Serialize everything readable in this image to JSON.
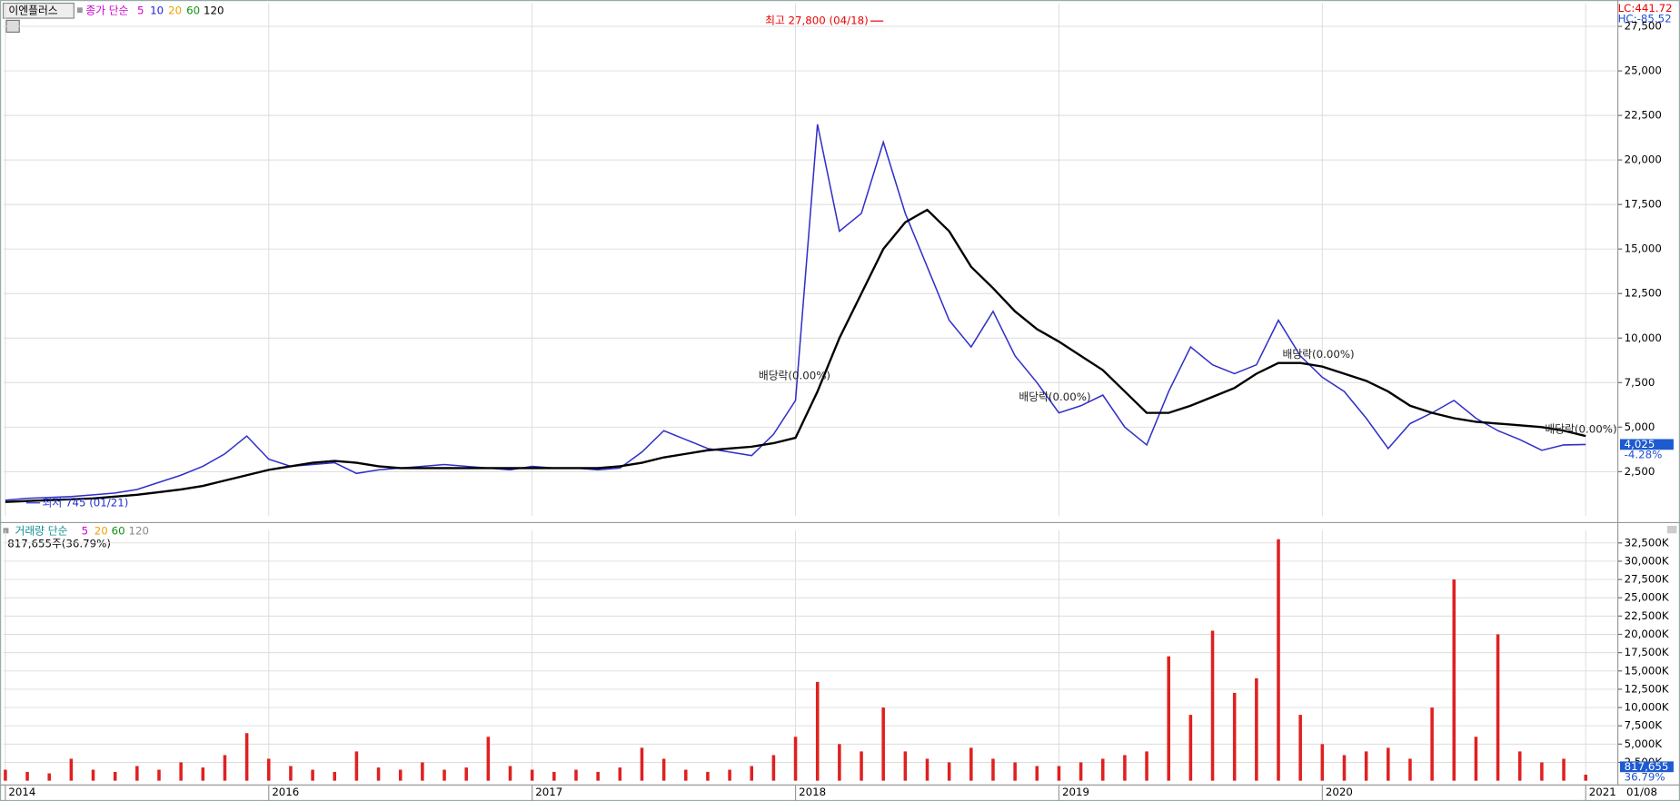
{
  "header": {
    "name": "이엔플러스",
    "ma_label": "종가 단순",
    "lc": "LC:441.72",
    "hc": "HC:-85.52"
  },
  "date_label": "01/08",
  "chart_data": [
    {
      "type": "line",
      "ma_legend": [
        {
          "label": "5",
          "color": "#d000d0"
        },
        {
          "label": "10",
          "color": "#2020e0"
        },
        {
          "label": "20",
          "color": "#f0a000"
        },
        {
          "label": "60",
          "color": "#109010"
        }
      ],
      "xlim": [
        0,
        72
      ],
      "xticks": [
        {
          "value": 0,
          "label": "2014"
        },
        {
          "value": 12,
          "label": "2016"
        },
        {
          "value": 24,
          "label": "2017"
        },
        {
          "value": 36,
          "label": "2018"
        },
        {
          "value": 48,
          "label": "2019"
        },
        {
          "value": 60,
          "label": "2020"
        },
        {
          "value": 72,
          "label": "2021"
        }
      ],
      "ylim": [
        0,
        28800
      ],
      "yticks": [
        {
          "value": 2500,
          "label": "2,500"
        },
        {
          "value": 5000,
          "label": "5,000"
        },
        {
          "value": 7500,
          "label": "7,500"
        },
        {
          "value": 10000,
          "label": "10,000"
        },
        {
          "value": 12500,
          "label": "12,500"
        },
        {
          "value": 15000,
          "label": "15,000"
        },
        {
          "value": 17500,
          "label": "17,500"
        },
        {
          "value": 20000,
          "label": "20,000"
        },
        {
          "value": 22500,
          "label": "22,500"
        },
        {
          "value": 25000,
          "label": "25,000"
        },
        {
          "value": 27500,
          "label": "27,500"
        }
      ],
      "grid": true,
      "series": [
        {
          "color": "#3030c8",
          "values": [
            900,
            1000,
            1050,
            1100,
            1200,
            1300,
            1500,
            1900,
            2300,
            2800,
            3500,
            4500,
            3200,
            2800,
            2900,
            3000,
            2400,
            2600,
            2700,
            2800,
            2900,
            2800,
            2700,
            2600,
            2800,
            2700,
            2700,
            2600,
            2700,
            3600,
            4800,
            4300,
            3800,
            3600,
            3400,
            4600,
            6500,
            22000,
            16000,
            17000,
            21000,
            17000,
            14000,
            11000,
            9500,
            11500,
            9000,
            7500,
            5800,
            6200,
            6800,
            5000,
            4000,
            7000,
            9500,
            8500,
            8000,
            8500,
            11000,
            9000,
            7800,
            7000,
            5500,
            3800,
            5200,
            5800,
            6500,
            5500,
            4800,
            4300,
            3700,
            4000,
            4025
          ]
        },
        {
          "name": "120",
          "color": "#000000",
          "values": [
            800,
            850,
            900,
            950,
            1000,
            1100,
            1200,
            1350,
            1500,
            1700,
            2000,
            2300,
            2600,
            2800,
            3000,
            3100,
            3000,
            2800,
            2700,
            2700,
            2700,
            2700,
            2700,
            2700,
            2700,
            2700,
            2700,
            2700,
            2800,
            3000,
            3300,
            3500,
            3700,
            3800,
            3900,
            4100,
            4400,
            7000,
            10000,
            12500,
            15000,
            16500,
            17200,
            16000,
            14000,
            12800,
            11500,
            10500,
            9800,
            9000,
            8200,
            7000,
            5800,
            5800,
            6200,
            6700,
            7200,
            8000,
            8600,
            8600,
            8400,
            8000,
            7600,
            7000,
            6200,
            5800,
            5500,
            5300,
            5200,
            5100,
            5000,
            4800,
            4500
          ]
        }
      ],
      "high": {
        "text": "최고 27,800 (04/18)",
        "value": 27800,
        "x": 40
      },
      "low": {
        "text": "최저 745 (01/21)",
        "value": 745,
        "x": 1
      },
      "dividends": [
        "배당락(0.00%)",
        "배당락(0.00%)",
        "배당락(0.00%)",
        "배당락(0.00%)"
      ],
      "last_label": "4,025",
      "last_change": "-4.28%"
    },
    {
      "type": "bar",
      "title": "거래량 단순",
      "ma_legend": [
        {
          "label": "5",
          "color": "#d000d0"
        },
        {
          "label": "20",
          "color": "#f0a000"
        },
        {
          "label": "60",
          "color": "#109010"
        },
        {
          "label": "120",
          "color": "#888888"
        }
      ],
      "volume_text": "817,655주(36.79%)",
      "xlim": [
        0,
        72
      ],
      "ylim": [
        0,
        34250
      ],
      "yticks": [
        {
          "value": 2500,
          "label": "2,500K"
        },
        {
          "value": 5000,
          "label": "5,000K"
        },
        {
          "value": 7500,
          "label": "7,500K"
        },
        {
          "value": 10000,
          "label": "10,000K"
        },
        {
          "value": 12500,
          "label": "12,500K"
        },
        {
          "value": 15000,
          "label": "15,000K"
        },
        {
          "value": 17500,
          "label": "17,500K"
        },
        {
          "value": 20000,
          "label": "20,000K"
        },
        {
          "value": 22500,
          "label": "22,500K"
        },
        {
          "value": 25000,
          "label": "25,000K"
        },
        {
          "value": 27500,
          "label": "27,500K"
        },
        {
          "value": 30000,
          "label": "30,000K"
        },
        {
          "value": 32500,
          "label": "32,500K"
        }
      ],
      "grid": true,
      "color": "#e02020",
      "values": [
        1500,
        1200,
        1000,
        3000,
        1500,
        1200,
        2000,
        1500,
        2500,
        1800,
        3500,
        6500,
        3000,
        2000,
        1500,
        1200,
        4000,
        1800,
        1500,
        2500,
        1500,
        1800,
        6000,
        2000,
        1500,
        1200,
        1500,
        1200,
        1800,
        4500,
        3000,
        1500,
        1200,
        1500,
        2000,
        3500,
        6000,
        13500,
        5000,
        4000,
        10000,
        4000,
        3000,
        2500,
        4500,
        3000,
        2500,
        2000,
        2000,
        2500,
        3000,
        3500,
        4000,
        17000,
        9000,
        20500,
        12000,
        14000,
        33000,
        9000,
        5000,
        3500,
        4000,
        4500,
        3000,
        10000,
        27500,
        6000,
        20000,
        4000,
        2500,
        3000,
        817.655
      ],
      "last_label": "817,655",
      "last_change": "36.79%"
    }
  ]
}
